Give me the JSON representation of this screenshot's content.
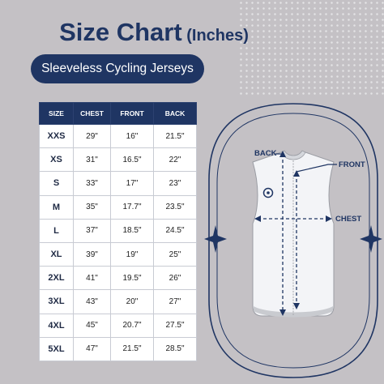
{
  "title": {
    "main": "Size Chart",
    "unit": " (Inches)"
  },
  "subtitle": "Sleeveless Cycling Jerseys",
  "table": {
    "headers": [
      "SIZE",
      "CHEST",
      "FRONT",
      "BACK"
    ],
    "rows": [
      [
        "XXS",
        "29\"",
        "16\"",
        "21.5\""
      ],
      [
        "XS",
        "31\"",
        "16.5\"",
        "22\""
      ],
      [
        "S",
        "33\"",
        "17\"",
        "23\""
      ],
      [
        "M",
        "35\"",
        "17.7\"",
        "23.5\""
      ],
      [
        "L",
        "37\"",
        "18.5\"",
        "24.5\""
      ],
      [
        "XL",
        "39\"",
        "19\"",
        "25\""
      ],
      [
        "2XL",
        "41\"",
        "19.5\"",
        "26\""
      ],
      [
        "3XL",
        "43\"",
        "20\"",
        "27\""
      ],
      [
        "4XL",
        "45\"",
        "20.7\"",
        "27.5\""
      ],
      [
        "5XL",
        "47\"",
        "21.5\"",
        "28.5\""
      ]
    ]
  },
  "diagram": {
    "labels": {
      "back": "BACK",
      "front": "FRONT",
      "chest": "CHEST"
    }
  },
  "colors": {
    "navy": "#1f3563",
    "background": "#c4c1c5",
    "white": "#ffffff"
  }
}
